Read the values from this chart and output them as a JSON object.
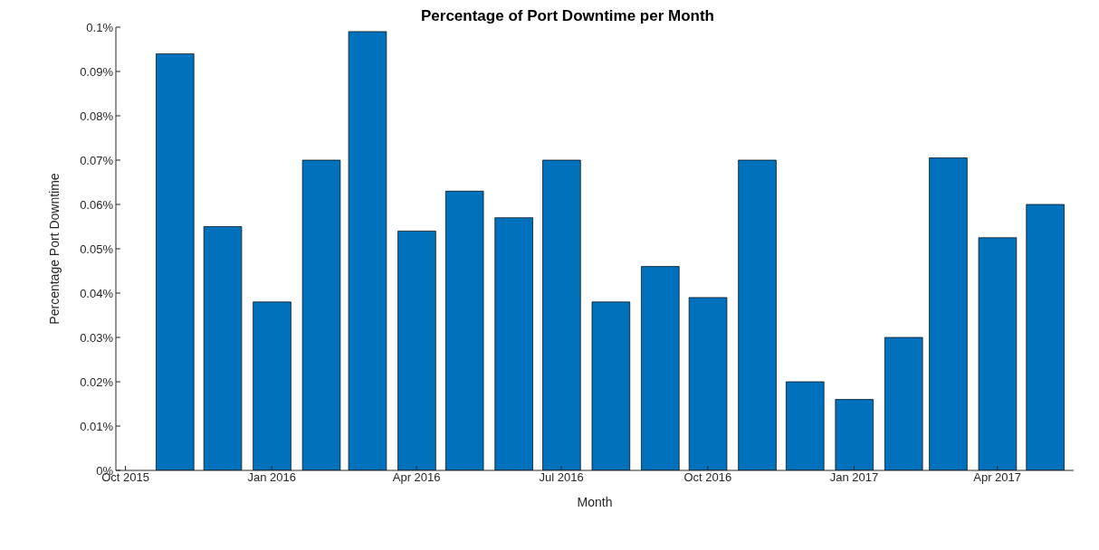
{
  "chart_data": {
    "type": "bar",
    "title": "Percentage of Port Downtime per Month",
    "xlabel": "Month",
    "ylabel": "Percentage Port Downtime",
    "x": [
      "2015-11",
      "2015-12",
      "2016-01",
      "2016-02",
      "2016-03",
      "2016-04",
      "2016-05",
      "2016-06",
      "2016-07",
      "2016-08",
      "2016-09",
      "2016-10",
      "2016-11",
      "2016-12",
      "2017-01",
      "2017-02",
      "2017-03",
      "2017-04",
      "2017-05"
    ],
    "values": [
      0.094,
      0.055,
      0.038,
      0.07,
      0.099,
      0.054,
      0.063,
      0.057,
      0.07,
      0.038,
      0.046,
      0.039,
      0.07,
      0.02,
      0.016,
      0.03,
      0.0705,
      0.0525,
      0.06
    ],
    "color": "#0072bd",
    "xlim": [
      "2015-09-25",
      "2017-05-19"
    ],
    "xticks": [
      {
        "value": "2015-10",
        "label": "Oct 2015"
      },
      {
        "value": "2016-01",
        "label": "Jan 2016"
      },
      {
        "value": "2016-04",
        "label": "Apr 2016"
      },
      {
        "value": "2016-07",
        "label": "Jul 2016"
      },
      {
        "value": "2016-10",
        "label": "Oct 2016"
      },
      {
        "value": "2017-01",
        "label": "Jan 2017"
      },
      {
        "value": "2017-04",
        "label": "Apr 2017"
      }
    ],
    "ylim": [
      0,
      0.1
    ],
    "yticks": [
      {
        "value": 0,
        "label": "0%"
      },
      {
        "value": 0.01,
        "label": "0.01%"
      },
      {
        "value": 0.02,
        "label": "0.02%"
      },
      {
        "value": 0.03,
        "label": "0.03%"
      },
      {
        "value": 0.04,
        "label": "0.04%"
      },
      {
        "value": 0.05,
        "label": "0.05%"
      },
      {
        "value": 0.06,
        "label": "0.06%"
      },
      {
        "value": 0.07,
        "label": "0.07%"
      },
      {
        "value": 0.08,
        "label": "0.08%"
      },
      {
        "value": 0.09,
        "label": "0.09%"
      },
      {
        "value": 0.1,
        "label": "0.1%"
      }
    ],
    "grid": false,
    "legend": false
  }
}
